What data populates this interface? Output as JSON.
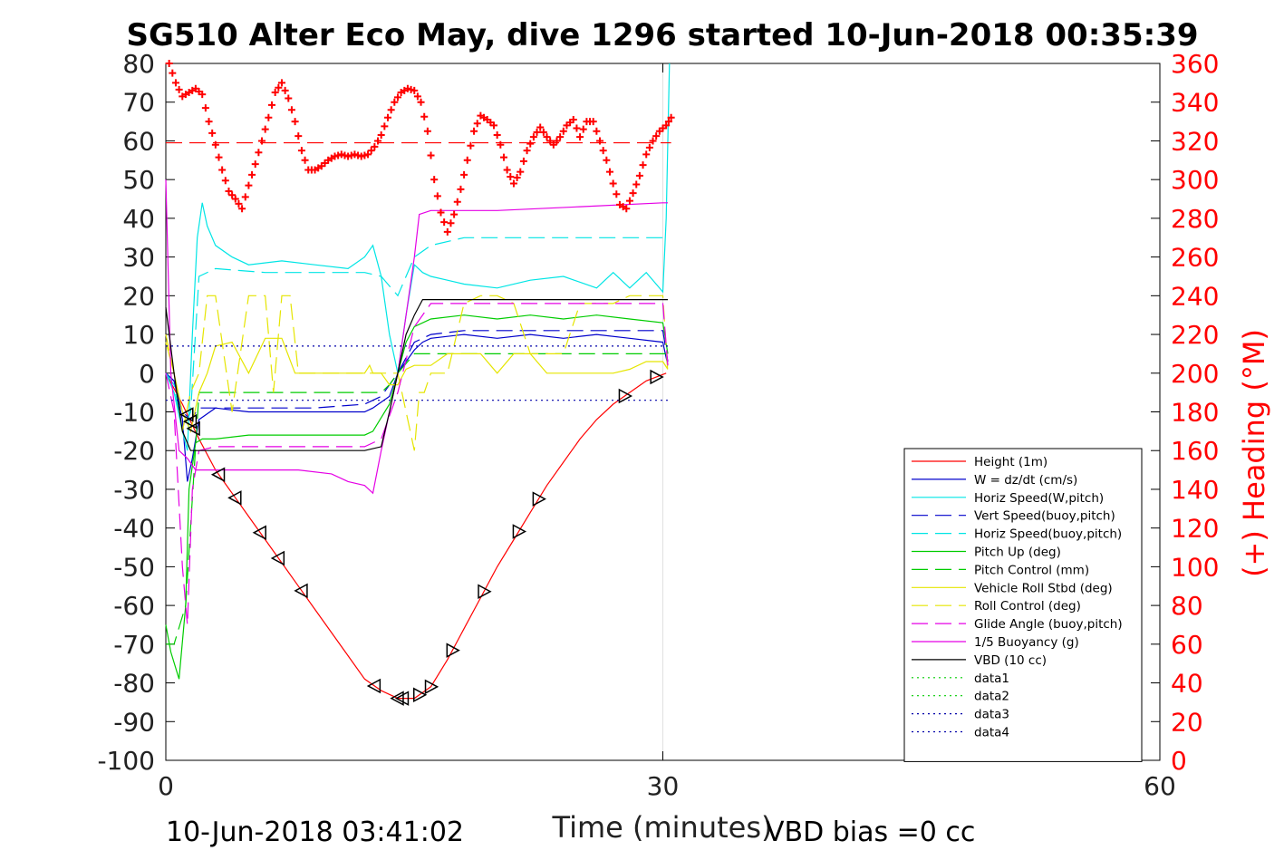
{
  "chart_data": {
    "type": "line",
    "title": "SG510 Alter Eco May, dive 1296 started 10-Jun-2018 00:35:39",
    "xlabel": "Time (minutes)",
    "ylabel_left": "",
    "ylabel_right": "(+) Heading (°M)",
    "xlim": [
      0,
      60
    ],
    "ylim_left": [
      -100,
      80
    ],
    "ylim_right": [
      0,
      360
    ],
    "x_ticks": [
      "0",
      "30",
      "60"
    ],
    "y_ticks_left": [
      "80",
      "70",
      "60",
      "50",
      "40",
      "30",
      "20",
      "10",
      "0",
      "-10",
      "-20",
      "-30",
      "-40",
      "-50",
      "-60",
      "-70",
      "-80",
      "-90",
      "-100"
    ],
    "y_ticks_right": [
      "360",
      "340",
      "320",
      "300",
      "280",
      "260",
      "240",
      "220",
      "200",
      "180",
      "160",
      "140",
      "120",
      "100",
      "80",
      "60",
      "40",
      "20",
      "0"
    ],
    "footer_left": "10-Jun-2018 03:41:02",
    "footer_right": "VBD bias =0 cc",
    "legend_position": "bottom-right",
    "heading_mean": 319,
    "series": [
      {
        "name": "Height (1m)",
        "color": "#ff0000",
        "style": "solid",
        "x": [
          0,
          1,
          2,
          3,
          4,
          5,
          6,
          7,
          8,
          9,
          10,
          11,
          12,
          13,
          14,
          15,
          16,
          17,
          18,
          19,
          20,
          21,
          22,
          23,
          24,
          25,
          26,
          27,
          28,
          29,
          30.2
        ],
        "values": [
          0,
          -8,
          -17,
          -25,
          -31,
          -37,
          -43,
          -49,
          -55,
          -61,
          -67,
          -73,
          -79,
          -82,
          -84,
          -84,
          -81,
          -74,
          -66,
          -58,
          -50,
          -43,
          -36,
          -29,
          -23,
          -17,
          -12,
          -8,
          -5,
          -2,
          0
        ]
      },
      {
        "name": "W = dz/dt (cm/s)",
        "color": "#0000cc",
        "style": "solid",
        "x": [
          0,
          0.5,
          1,
          1.3,
          1.6,
          2,
          3,
          5,
          8,
          10,
          12,
          12.5,
          13.5,
          14,
          14.5,
          15,
          15.5,
          16,
          18,
          20,
          22,
          24,
          26,
          28,
          30,
          30.3
        ],
        "values": [
          0,
          -2,
          -12,
          -28,
          -22,
          -12,
          -9,
          -10,
          -10,
          -10,
          -10,
          -9,
          -6,
          0,
          3,
          6,
          8,
          9,
          10,
          9,
          10,
          9,
          10,
          9,
          8,
          2
        ]
      },
      {
        "name": "Horiz Speed(W,pitch)",
        "color": "#00e5e5",
        "style": "solid",
        "x": [
          0,
          0.5,
          1,
          1.3,
          1.6,
          1.9,
          2.2,
          2.5,
          3,
          4,
          5,
          7,
          9,
          11,
          12,
          12.5,
          13,
          13.5,
          14,
          14.5,
          15,
          15.5,
          16,
          17,
          18,
          20,
          22,
          24,
          26,
          27,
          28,
          29,
          30,
          30.2,
          30.4
        ],
        "values": [
          0,
          -5,
          -15,
          -20,
          10,
          35,
          44,
          38,
          33,
          30,
          28,
          29,
          28,
          27,
          30,
          33,
          25,
          10,
          0,
          15,
          28,
          26,
          25,
          24,
          23,
          22,
          24,
          25,
          22,
          26,
          22,
          26,
          21,
          40,
          80
        ]
      },
      {
        "name": "Vert Speed(buoy,pitch)",
        "color": "#0000cc",
        "style": "dashed",
        "x": [
          0,
          0.5,
          1,
          1.5,
          2,
          3,
          6,
          9,
          12,
          13,
          14,
          15,
          16,
          18,
          20,
          22,
          24,
          26,
          28,
          30,
          30.3
        ],
        "values": [
          0,
          -2,
          -10,
          -12,
          -9,
          -9,
          -9,
          -9,
          -8,
          -6,
          0,
          8,
          10,
          11,
          11,
          11,
          11,
          11,
          11,
          11,
          3
        ]
      },
      {
        "name": "Horiz Speed(buoy,pitch)",
        "color": "#00e5e5",
        "style": "dashed",
        "x": [
          0,
          0.5,
          1,
          1.5,
          2,
          3,
          6,
          9,
          12,
          13,
          14,
          15,
          16,
          18,
          20,
          22,
          24,
          26,
          28,
          30,
          30.3
        ],
        "values": [
          0,
          -3,
          -15,
          -10,
          25,
          27,
          26,
          26,
          26,
          25,
          20,
          30,
          33,
          35,
          35,
          35,
          35,
          35,
          35,
          35,
          34
        ]
      },
      {
        "name": "Pitch Up (deg)",
        "color": "#00cc00",
        "style": "solid",
        "x": [
          0,
          0.3,
          0.8,
          1.2,
          1.4,
          1.8,
          2.2,
          3,
          5,
          8,
          11,
          12,
          12.5,
          13.5,
          14,
          14.5,
          15,
          16,
          18,
          20,
          22,
          24,
          26,
          28,
          30,
          30.3
        ],
        "values": [
          -65,
          -72,
          -79,
          -60,
          -30,
          -18,
          -17,
          -17,
          -16,
          -16,
          -16,
          -16,
          -15,
          -8,
          0,
          8,
          12,
          14,
          15,
          14,
          15,
          14,
          15,
          14,
          13,
          5
        ]
      },
      {
        "name": "Pitch Control (mm)",
        "color": "#00cc00",
        "style": "dashed",
        "x": [
          0,
          0.5,
          1.2,
          2,
          3,
          6,
          12,
          13,
          13.5,
          14,
          15,
          16,
          20,
          25,
          30,
          30.3
        ],
        "values": [
          -70,
          -70,
          -60,
          -5,
          -5,
          -5,
          -5,
          -5,
          -3,
          0,
          5,
          5,
          5,
          5,
          5,
          5
        ]
      },
      {
        "name": "Vehicle Roll Stbd (deg)",
        "color": "#e5e500",
        "style": "solid",
        "x": [
          0,
          0.5,
          1,
          1.5,
          2,
          2.5,
          3,
          4,
          5,
          6,
          7,
          7.8,
          8,
          8.5,
          9,
          10,
          11,
          12,
          12.3,
          12.5,
          13,
          13.5,
          14,
          14.5,
          15,
          16,
          17,
          18,
          19,
          20,
          21,
          22,
          23,
          24,
          25,
          26,
          27,
          28,
          29,
          30,
          30.3
        ],
        "values": [
          8,
          0,
          -10,
          -15,
          -5,
          0,
          7,
          8,
          0,
          9,
          9,
          0,
          0,
          0,
          0,
          0,
          0,
          0,
          2,
          0,
          0,
          -3,
          -3,
          1,
          2,
          2,
          5,
          5,
          5,
          0,
          5,
          5,
          0,
          0,
          0,
          0,
          0,
          1,
          3,
          3,
          1
        ]
      },
      {
        "name": "Roll Control (deg)",
        "color": "#e5e500",
        "style": "dashed",
        "x": [
          0,
          0.5,
          1,
          1.5,
          2,
          2.5,
          3,
          4,
          5,
          6,
          6.5,
          7,
          7.5,
          8,
          9,
          12,
          13,
          14,
          15,
          15.3,
          15.6,
          16,
          17,
          18,
          19,
          20,
          21,
          22,
          23,
          24,
          25,
          26,
          27,
          28,
          29,
          30,
          30.3
        ],
        "values": [
          10,
          0,
          -15,
          -5,
          0,
          20,
          20,
          -10,
          20,
          20,
          -5,
          20,
          20,
          0,
          0,
          0,
          0,
          0,
          -20,
          -5,
          -5,
          0,
          0,
          18,
          20,
          20,
          18,
          5,
          5,
          5,
          18,
          18,
          18,
          20,
          20,
          20,
          0
        ]
      },
      {
        "name": "Glide Angle (buoy,pitch)",
        "color": "#e500e5",
        "style": "dashed",
        "x": [
          0,
          0.5,
          1,
          1.3,
          1.6,
          2,
          3,
          6,
          9,
          12,
          13,
          14,
          15,
          16,
          18,
          20,
          22,
          24,
          26,
          28,
          30,
          30.3
        ],
        "values": [
          0,
          -10,
          -50,
          -65,
          -30,
          -20,
          -19,
          -19,
          -19,
          -19,
          -17,
          -5,
          12,
          18,
          18,
          18,
          18,
          18,
          18,
          18,
          18,
          2
        ]
      },
      {
        "name": "1/5 Buoyancy (g)",
        "color": "#e500e5",
        "style": "solid",
        "x": [
          0,
          0.3,
          0.8,
          1.3,
          1.8,
          2.2,
          5,
          8,
          10,
          11,
          12,
          12.5,
          13,
          14,
          15,
          15.3,
          16,
          20,
          25,
          30,
          30.3
        ],
        "values": [
          50,
          0,
          -20,
          -22,
          -25,
          -25,
          -25,
          -25,
          -26,
          -28,
          -29,
          -31,
          -20,
          0,
          30,
          41,
          42,
          42,
          43,
          44,
          44
        ]
      },
      {
        "name": "VBD (10 cc)",
        "color": "#000000",
        "style": "solid",
        "x": [
          0,
          0.5,
          1,
          1.5,
          2,
          3,
          6,
          9,
          12,
          13,
          13.5,
          14,
          14.5,
          15,
          15.5,
          16,
          20,
          25,
          30,
          30.3
        ],
        "values": [
          17,
          0,
          -15,
          -20,
          -20,
          -20,
          -20,
          -20,
          -20,
          -19,
          -10,
          0,
          10,
          15,
          19,
          19,
          19,
          19,
          19,
          19
        ]
      },
      {
        "name": "data1",
        "color": "#00cc00",
        "style": "dotted",
        "x": [],
        "values": []
      },
      {
        "name": "data2",
        "color": "#00cc00",
        "style": "dotted",
        "x": [],
        "values": []
      },
      {
        "name": "data3",
        "color": "#0000aa",
        "style": "dotted",
        "x": [
          0,
          30.5
        ],
        "values": [
          7,
          7
        ]
      },
      {
        "name": "data4",
        "color": "#0000aa",
        "style": "dotted",
        "x": [
          0,
          30.5
        ],
        "values": [
          -7,
          -7
        ]
      }
    ],
    "heading": {
      "color": "#ff0000",
      "x": [
        0.2,
        0.6,
        1,
        1.4,
        1.8,
        2.2,
        2.6,
        3,
        3.4,
        3.8,
        4.2,
        4.6,
        5,
        5.4,
        5.8,
        6.2,
        6.6,
        7,
        7.4,
        7.8,
        8.2,
        8.6,
        9,
        9.4,
        9.8,
        10.2,
        10.6,
        11,
        11.4,
        11.8,
        12.2,
        12.6,
        13,
        13.4,
        13.8,
        14.2,
        14.6,
        15,
        15.4,
        15.8,
        16.2,
        16.6,
        17,
        17.4,
        17.8,
        18.2,
        18.6,
        19,
        19.4,
        19.8,
        20.2,
        20.6,
        21,
        21.4,
        21.8,
        22.2,
        22.6,
        23,
        23.4,
        23.8,
        24.2,
        24.6,
        25,
        25.4,
        25.8,
        26.2,
        26.6,
        27,
        27.4,
        27.8,
        28.2,
        28.6,
        29,
        29.4,
        29.8,
        30.2,
        30.5
      ],
      "values": [
        360,
        350,
        343,
        345,
        347,
        344,
        330,
        318,
        305,
        294,
        290,
        285,
        297,
        308,
        320,
        332,
        345,
        350,
        342,
        330,
        315,
        305,
        305,
        307,
        310,
        312,
        313,
        312,
        313,
        312,
        313,
        317,
        323,
        332,
        340,
        345,
        347,
        346,
        340,
        325,
        300,
        283,
        273,
        282,
        295,
        310,
        325,
        333,
        331,
        328,
        318,
        305,
        298,
        304,
        315,
        322,
        327,
        322,
        318,
        322,
        328,
        331,
        322,
        330,
        330,
        320,
        310,
        298,
        287,
        285,
        293,
        302,
        313,
        320,
        325,
        328,
        332
      ]
    }
  }
}
